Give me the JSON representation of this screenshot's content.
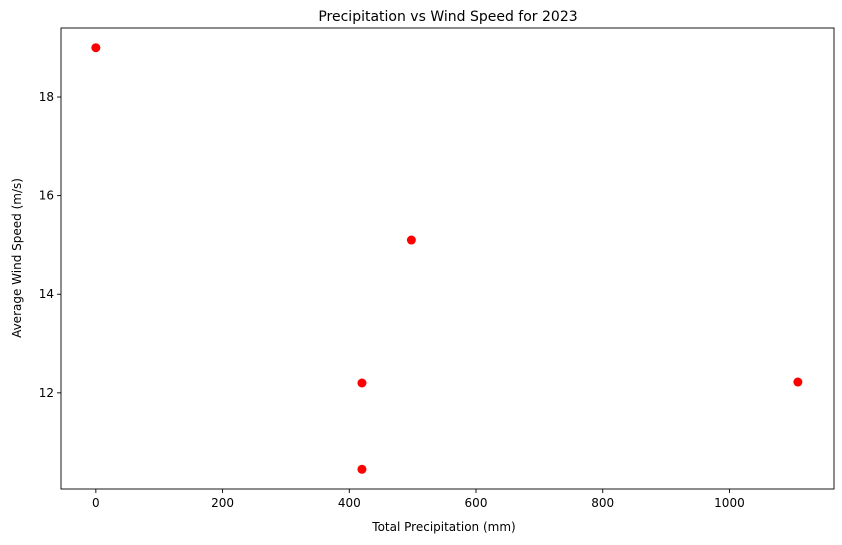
{
  "chart_data": {
    "type": "scatter",
    "title": "Precipitation vs Wind Speed for 2023",
    "xlabel": "Total Precipitation (mm)",
    "ylabel": "Average Wind Speed (m/s)",
    "xlim": [
      -55,
      1165
    ],
    "ylim": [
      10.05,
      19.4
    ],
    "xticks": [
      0,
      200,
      400,
      600,
      800,
      1000
    ],
    "yticks": [
      12,
      14,
      16,
      18
    ],
    "grid": false,
    "marker_color": "#ff0000",
    "points": [
      {
        "x": 0,
        "y": 19.0
      },
      {
        "x": 498,
        "y": 15.1
      },
      {
        "x": 420,
        "y": 12.2
      },
      {
        "x": 420,
        "y": 10.45
      },
      {
        "x": 1108,
        "y": 12.22
      }
    ]
  }
}
